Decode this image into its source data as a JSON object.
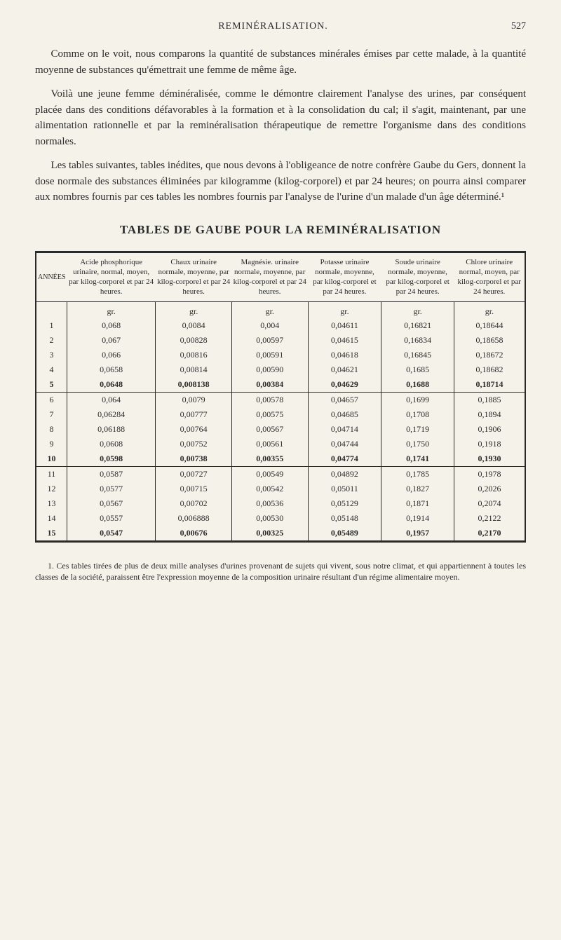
{
  "header": {
    "title": "REMINÉRALISATION.",
    "pageNumber": "527"
  },
  "paragraphs": {
    "p1": "Comme on le voit, nous comparons la quantité de substances minérales émises par cette malade, à la quantité moyenne de substances qu'émettrait une femme de même âge.",
    "p2": "Voilà une jeune femme déminéralisée, comme le démontre clairement l'analyse des urines, par conséquent placée dans des conditions défavorables à la formation et à la consolidation du cal; il s'agit, maintenant, par une alimentation rationnelle et par la reminéralisation thérapeutique de remettre l'organisme dans des conditions normales.",
    "p3": "Les tables suivantes, tables inédites, que nous devons à l'obligeance de notre confrère Gaube du Gers, donnent la dose normale des substances éliminées par kilogramme (kilog-corporel) et par 24 heures; on pourra ainsi comparer aux nombres fournis par ces tables les nombres fournis par l'analyse de l'urine d'un malade d'un âge déterminé.¹"
  },
  "sectionTitle": "TABLES DE GAUBE POUR LA REMINÉRALISATION",
  "table": {
    "headers": {
      "col0": "ANNÉES",
      "col1": "Acide phosphorique urinaire, normal, moyen, par kilog-corporel et par 24 heures.",
      "col2": "Chaux urinaire normale, moyenne, par kilog-corporel et par 24 heures.",
      "col3": "Magnésie. urinaire normale, moyenne, par kilog-corporel et par 24 heures.",
      "col4": "Potasse urinaire normale, moyenne, par kilog-corporel et par 24 heures.",
      "col5": "Soude urinaire normale, moyenne, par kilog-corporel et par 24 heures.",
      "col6": "Chlore urinaire normal, moyen, par kilog-corporel et par 24 heures."
    },
    "unit": "gr.",
    "rows": [
      {
        "n": "1",
        "c1": "0,068",
        "c2": "0,0084",
        "c3": "0,004",
        "c4": "0,04611",
        "c5": "0,16821",
        "c6": "0,18644",
        "bold": false,
        "groupTop": false
      },
      {
        "n": "2",
        "c1": "0,067",
        "c2": "0,00828",
        "c3": "0,00597",
        "c4": "0,04615",
        "c5": "0,16834",
        "c6": "0,18658",
        "bold": false,
        "groupTop": false
      },
      {
        "n": "3",
        "c1": "0,066",
        "c2": "0,00816",
        "c3": "0,00591",
        "c4": "0,04618",
        "c5": "0,16845",
        "c6": "0,18672",
        "bold": false,
        "groupTop": false
      },
      {
        "n": "4",
        "c1": "0,0658",
        "c2": "0,00814",
        "c3": "0,00590",
        "c4": "0,04621",
        "c5": "0,1685",
        "c6": "0,18682",
        "bold": false,
        "groupTop": false
      },
      {
        "n": "5",
        "c1": "0,0648",
        "c2": "0,008138",
        "c3": "0,00384",
        "c4": "0,04629",
        "c5": "0,1688",
        "c6": "0,18714",
        "bold": true,
        "groupTop": false
      },
      {
        "n": "6",
        "c1": "0,064",
        "c2": "0,0079",
        "c3": "0,00578",
        "c4": "0,04657",
        "c5": "0,1699",
        "c6": "0,1885",
        "bold": false,
        "groupTop": true
      },
      {
        "n": "7",
        "c1": "0,06284",
        "c2": "0,00777",
        "c3": "0,00575",
        "c4": "0,04685",
        "c5": "0,1708",
        "c6": "0,1894",
        "bold": false,
        "groupTop": false
      },
      {
        "n": "8",
        "c1": "0,06188",
        "c2": "0,00764",
        "c3": "0,00567",
        "c4": "0,04714",
        "c5": "0,1719",
        "c6": "0,1906",
        "bold": false,
        "groupTop": false
      },
      {
        "n": "9",
        "c1": "0,0608",
        "c2": "0,00752",
        "c3": "0,00561",
        "c4": "0,04744",
        "c5": "0,1750",
        "c6": "0,1918",
        "bold": false,
        "groupTop": false
      },
      {
        "n": "10",
        "c1": "0,0598",
        "c2": "0,00738",
        "c3": "0,00355",
        "c4": "0,04774",
        "c5": "0,1741",
        "c6": "0,1930",
        "bold": true,
        "groupTop": false
      },
      {
        "n": "11",
        "c1": "0,0587",
        "c2": "0,00727",
        "c3": "0,00549",
        "c4": "0,04892",
        "c5": "0,1785",
        "c6": "0,1978",
        "bold": false,
        "groupTop": true
      },
      {
        "n": "12",
        "c1": "0,0577",
        "c2": "0,00715",
        "c3": "0,00542",
        "c4": "0,05011",
        "c5": "0,1827",
        "c6": "0,2026",
        "bold": false,
        "groupTop": false
      },
      {
        "n": "13",
        "c1": "0,0567",
        "c2": "0,00702",
        "c3": "0,00536",
        "c4": "0,05129",
        "c5": "0,1871",
        "c6": "0,2074",
        "bold": false,
        "groupTop": false
      },
      {
        "n": "14",
        "c1": "0,0557",
        "c2": "0,006888",
        "c3": "0,00530",
        "c4": "0,05148",
        "c5": "0,1914",
        "c6": "0,2122",
        "bold": false,
        "groupTop": false
      },
      {
        "n": "15",
        "c1": "0,0547",
        "c2": "0,00676",
        "c3": "0,00325",
        "c4": "0,05489",
        "c5": "0,1957",
        "c6": "0,2170",
        "bold": true,
        "groupTop": false
      }
    ]
  },
  "footnote": "1. Ces tables tirées de plus de deux mille analyses d'urines provenant de sujets qui vivent, sous notre climat, et qui appartiennent à toutes les classes de la société, paraissent être l'expression moyenne de la composition urinaire résultant d'un régime alimentaire moyen.",
  "styling": {
    "backgroundColor": "#f5f2ea",
    "textColor": "#2a2a2a",
    "fontFamily": "Georgia, Times New Roman, serif",
    "bodyFontSize": 15,
    "tableFontSize": 11,
    "titleFontSize": 17,
    "footnoteFontSize": 12,
    "borderColor": "#2a2a2a",
    "outerBorderWidth": 3,
    "innerBorderWidth": 1,
    "pageWidth": 800,
    "pageHeight": 1341
  }
}
